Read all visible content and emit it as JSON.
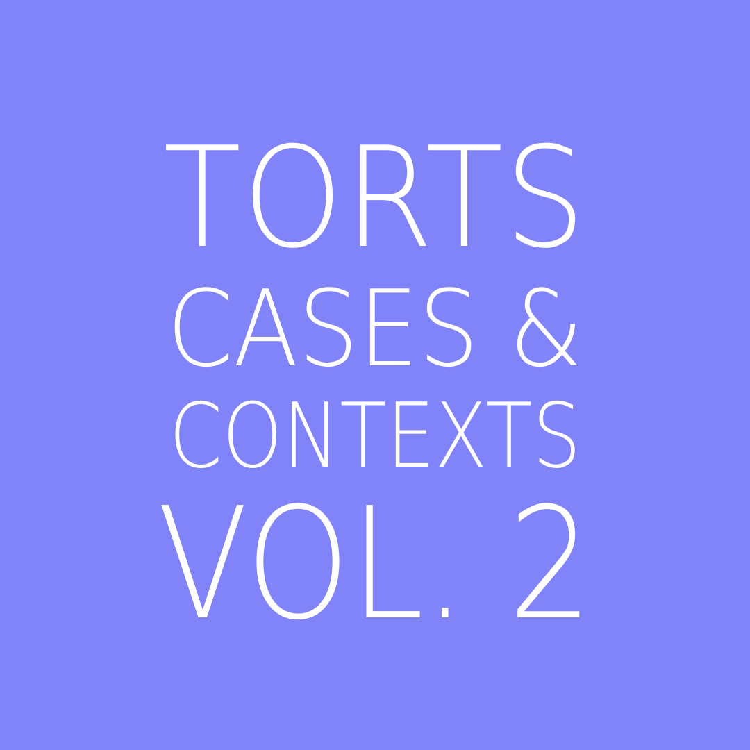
{
  "cover": {
    "background_color": "#8184f8",
    "text_color": "#ffffff",
    "lines": [
      "TORTS",
      "CASES &",
      "CONTEXTS",
      "VOL. 2"
    ]
  }
}
